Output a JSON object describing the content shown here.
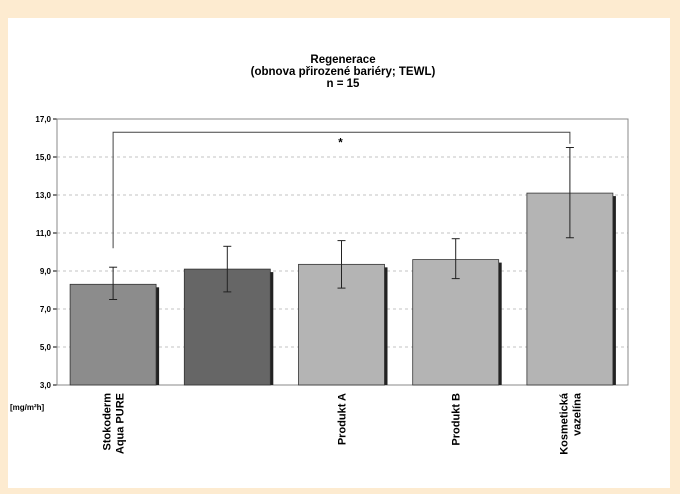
{
  "colors": {
    "background": "#fdebd0",
    "panel": "#ffffff",
    "bar_light": "#b4b4b4",
    "bar_mid": "#8c8c8c",
    "bar_dark": "#666666",
    "grid": "#b0b0b0"
  },
  "chart_data": {
    "type": "bar",
    "title": [
      "Regenerace",
      "(obnova přirozené bariéry; TEWL)",
      "n = 15"
    ],
    "ylabel": "[mg/m²h]",
    "ylim": [
      3.0,
      17.0
    ],
    "y_ticks": [
      "3,0",
      "5,0",
      "7,0",
      "9,0",
      "11,0",
      "13,0",
      "15,0",
      "17,0"
    ],
    "grid": true,
    "categories": [
      [
        "Stokoderm",
        "Aqua PURE"
      ],
      [
        ""
      ],
      [
        "Produkt A"
      ],
      [
        "Produkt B"
      ],
      [
        "Kosmetická",
        "vazelína"
      ]
    ],
    "values": [
      8.3,
      9.1,
      9.35,
      9.6,
      13.1
    ],
    "errors": [
      [
        7.5,
        9.2
      ],
      [
        7.9,
        10.3
      ],
      [
        8.1,
        10.6
      ],
      [
        8.6,
        10.7
      ],
      [
        10.75,
        15.5
      ]
    ],
    "bar_colors": [
      "bar_mid",
      "bar_dark",
      "bar_light",
      "bar_light",
      "bar_light"
    ],
    "significance": {
      "from": 0,
      "to": 4,
      "label": "*"
    }
  }
}
